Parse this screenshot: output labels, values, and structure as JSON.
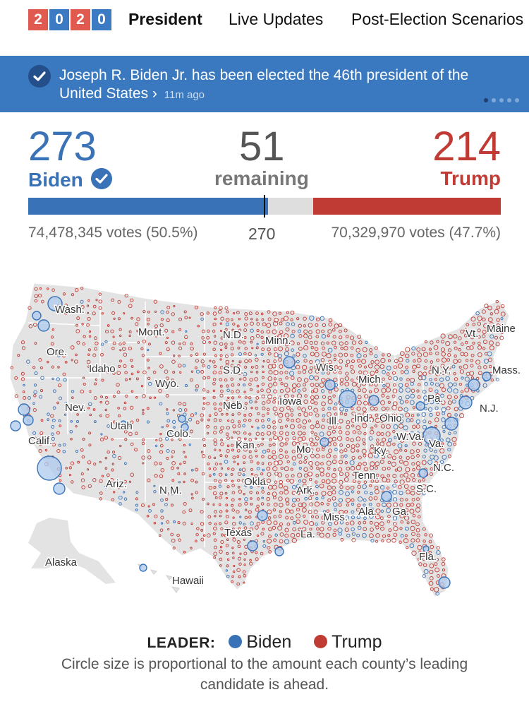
{
  "nav": {
    "logo_digits": [
      "2",
      "0",
      "2",
      "0"
    ],
    "tabs": [
      "President",
      "Live Updates",
      "Post-Election Scenarios"
    ],
    "active_tab": "President"
  },
  "banner": {
    "message": "Joseph R. Biden Jr. has been elected the 46th president of the United States",
    "chevron": "›",
    "time": "11m ago",
    "carousel_pages": 5,
    "carousel_active": 1
  },
  "scoreboard": {
    "biden": {
      "electoral": "273",
      "name": "Biden",
      "votes": "74,478,345 votes (50.5%)",
      "color": "#3a72b8"
    },
    "remaining": {
      "count": "51",
      "label": "remaining"
    },
    "trump": {
      "electoral": "214",
      "name": "Trump",
      "votes": "70,329,970 votes (47.7%)",
      "color": "#c13b35"
    },
    "threshold": "270",
    "total_electoral": 538
  },
  "map": {
    "state_labels": [
      "Wash.",
      "Mont.",
      "N.D.",
      "Minn.",
      "Maine",
      "Vt.",
      "Ore.",
      "Idaho",
      "S.D.",
      "Wis.",
      "Mich.",
      "N.Y.",
      "Mass.",
      "Wyo.",
      "Nev.",
      "Neb.",
      "Iowa",
      "Pa.",
      "N.J.",
      "Utah",
      "Colo.",
      "Ill.",
      "Ind.",
      "Ohio",
      "W.Va.",
      "Va.",
      "Calif.",
      "Kan.",
      "Mo.",
      "Ky.",
      "N.C.",
      "Tenn.",
      "Ariz.",
      "N.M.",
      "Okla.",
      "Ark.",
      "S.C.",
      "Miss.",
      "Ala.",
      "Ga.",
      "Texas",
      "La.",
      "Fla.",
      "Alaska",
      "Hawaii"
    ]
  },
  "legend": {
    "title": "LEADER:",
    "biden": "Biden",
    "trump": "Trump",
    "note": "Circle size is proportional to the amount each county’s leading candidate is ahead."
  }
}
